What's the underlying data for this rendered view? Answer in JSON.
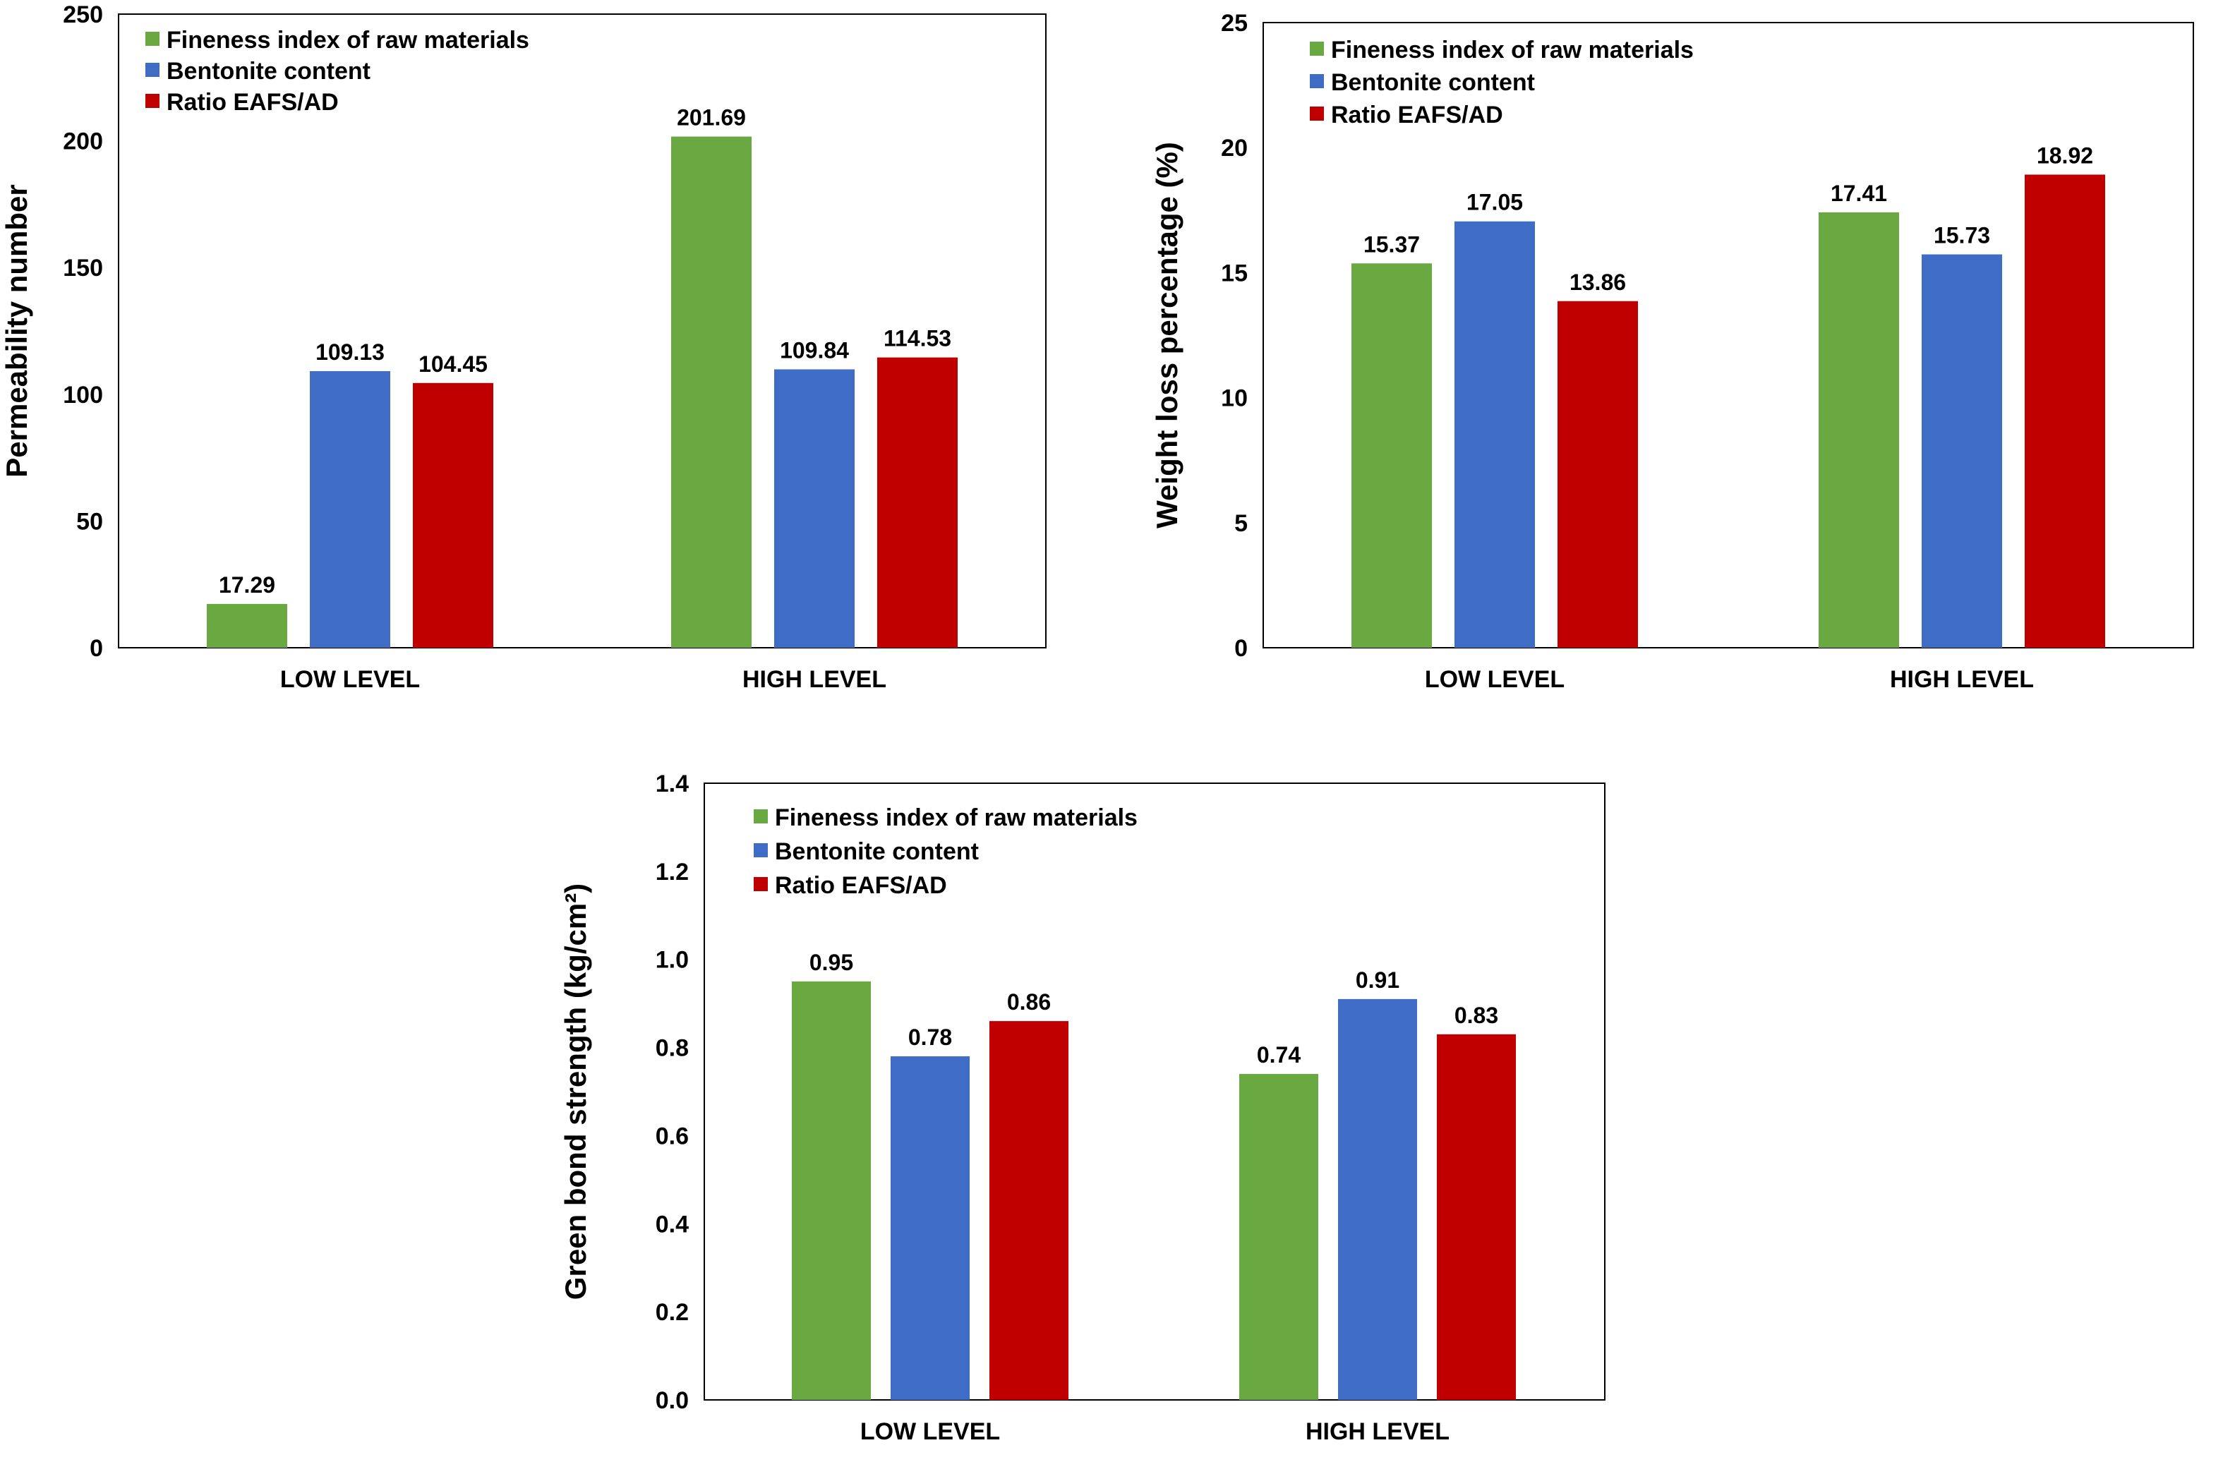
{
  "colors": {
    "fineness": "#6aa842",
    "bentonite": "#3f6cc4",
    "ratio": "#c00000"
  },
  "chart_data": [
    {
      "type": "bar",
      "categories": [
        "LOW LEVEL",
        "HIGH LEVEL"
      ],
      "series": [
        {
          "name": "Fineness index of raw materials",
          "values": [
            17.29,
            201.69
          ],
          "labels": [
            "17.29",
            "201.69"
          ]
        },
        {
          "name": "Bentonite content",
          "values": [
            109.13,
            109.84
          ],
          "labels": [
            "109.13",
            "109.84"
          ]
        },
        {
          "name": "Ratio EAFS/AD",
          "values": [
            104.45,
            114.53
          ],
          "labels": [
            "104.45",
            "114.53"
          ]
        }
      ],
      "xlabel": "",
      "ylabel": "Permeability number",
      "ylim": [
        0,
        250
      ],
      "yticks": [
        "0",
        "50",
        "100",
        "150",
        "200",
        "250"
      ],
      "grid": false,
      "legend": "top-left"
    },
    {
      "type": "bar",
      "categories": [
        "LOW LEVEL",
        "HIGH LEVEL"
      ],
      "series": [
        {
          "name": "Fineness index of raw materials",
          "values": [
            15.37,
            17.41
          ],
          "labels": [
            "15.37",
            "17.41"
          ]
        },
        {
          "name": "Bentonite content",
          "values": [
            17.05,
            15.73
          ],
          "labels": [
            "17.05",
            "15.73"
          ]
        },
        {
          "name": "Ratio EAFS/AD",
          "values": [
            13.86,
            18.92
          ],
          "labels": [
            "13.86",
            "18.92"
          ]
        }
      ],
      "xlabel": "",
      "ylabel": "Weight loss percentage (%)",
      "ylim": [
        0,
        25
      ],
      "yticks": [
        "0",
        "5",
        "10",
        "15",
        "20",
        "25"
      ],
      "grid": false,
      "legend": "top-left"
    },
    {
      "type": "bar",
      "categories": [
        "LOW LEVEL",
        "HIGH LEVEL"
      ],
      "series": [
        {
          "name": "Fineness index of raw materials",
          "values": [
            0.95,
            0.74
          ],
          "labels": [
            "0.95",
            "0.74"
          ]
        },
        {
          "name": "Bentonite content",
          "values": [
            0.78,
            0.91
          ],
          "labels": [
            "0.78",
            "0.91"
          ]
        },
        {
          "name": "Ratio EAFS/AD",
          "values": [
            0.86,
            0.83
          ],
          "labels": [
            "0.86",
            "0.83"
          ]
        }
      ],
      "xlabel": "",
      "ylabel": "Green bond strength (kg/cm²)",
      "ylim": [
        0,
        1.4
      ],
      "yticks": [
        "0.0",
        "0.2",
        "0.4",
        "0.6",
        "0.8",
        "1.0",
        "1.2",
        "1.4"
      ],
      "grid": false,
      "legend": "top-left"
    }
  ]
}
